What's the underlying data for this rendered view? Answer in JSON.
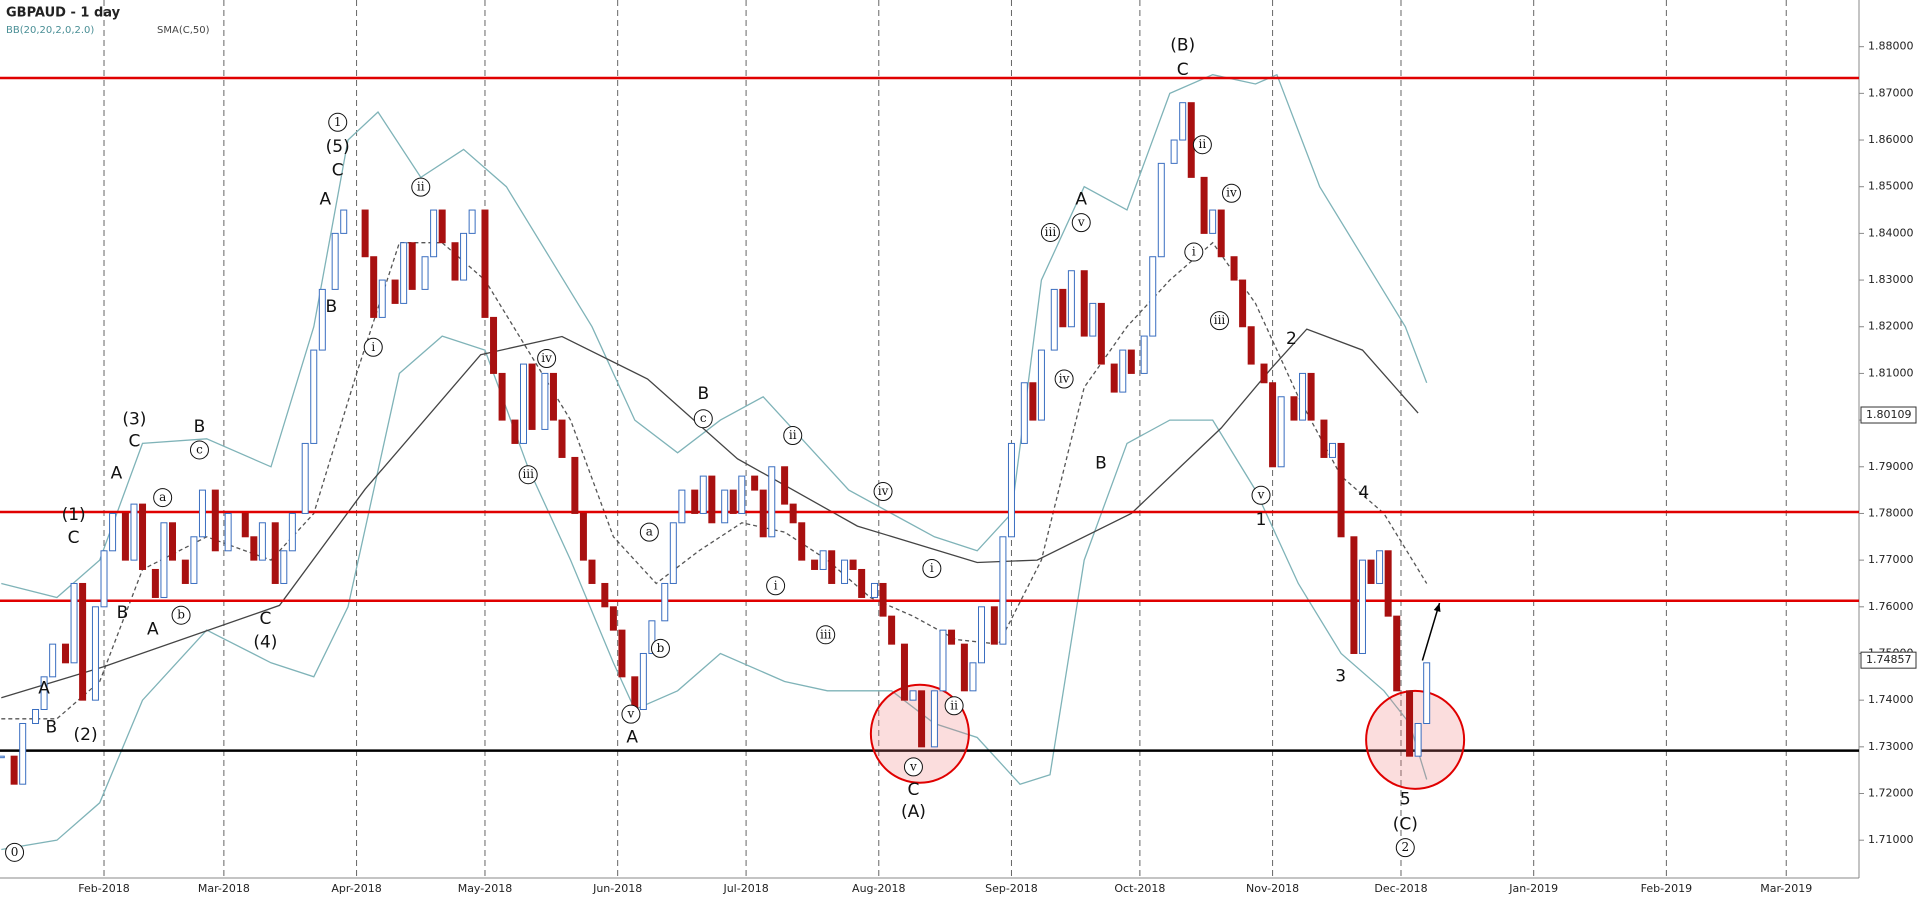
{
  "chart_data": {
    "type": "candlestick",
    "title": "GBPAUD - 1 day",
    "indicators": [
      "BB(20,20,2,0,2.0)",
      "SMA(C,50)"
    ],
    "xlim": [
      6.7,
      441
    ],
    "ylim": [
      1.7019,
      1.89
    ],
    "xticks": [
      {
        "value": 31,
        "label": "Feb-2018"
      },
      {
        "value": 59,
        "label": "Mar-2018"
      },
      {
        "value": 90,
        "label": "Apr-2018"
      },
      {
        "value": 120,
        "label": "May-2018"
      },
      {
        "value": 151,
        "label": "Jun-2018"
      },
      {
        "value": 181,
        "label": "Jul-2018"
      },
      {
        "value": 212,
        "label": "Aug-2018"
      },
      {
        "value": 243,
        "label": "Sep-2018"
      },
      {
        "value": 273,
        "label": "Oct-2018"
      },
      {
        "value": 304,
        "label": "Nov-2018"
      },
      {
        "value": 334,
        "label": "Dec-2018"
      },
      {
        "value": 365,
        "label": "Jan-2019"
      },
      {
        "value": 396,
        "label": "Feb-2019"
      },
      {
        "value": 424,
        "label": "Mar-2019"
      }
    ],
    "yticks": [
      {
        "value": 1.71,
        "label": "1.71000"
      },
      {
        "value": 1.72,
        "label": "1.72000"
      },
      {
        "value": 1.73,
        "label": "1.73000"
      },
      {
        "value": 1.74,
        "label": "1.74000"
      },
      {
        "value": 1.75,
        "label": "1.75000"
      },
      {
        "value": 1.76,
        "label": "1.76000"
      },
      {
        "value": 1.77,
        "label": "1.77000"
      },
      {
        "value": 1.78,
        "label": "1.78000"
      },
      {
        "value": 1.79,
        "label": "1.79000"
      },
      {
        "value": 1.8,
        "label": "1.80000"
      },
      {
        "value": 1.81,
        "label": "1.81000"
      },
      {
        "value": 1.82,
        "label": "1.82000"
      },
      {
        "value": 1.83,
        "label": "1.83000"
      },
      {
        "value": 1.84,
        "label": "1.84000"
      },
      {
        "value": 1.85,
        "label": "1.85000"
      },
      {
        "value": 1.86,
        "label": "1.86000"
      },
      {
        "value": 1.87,
        "label": "1.87000"
      },
      {
        "value": 1.88,
        "label": "1.88000"
      }
    ],
    "grid": true,
    "up_color": "#3a6ec0",
    "down_color": "#a81010",
    "x": [
      7,
      10,
      12,
      15,
      17,
      19,
      22,
      24,
      26,
      29,
      31,
      33,
      36,
      38,
      40,
      43,
      45,
      47,
      50,
      52,
      54,
      57,
      60,
      64,
      66,
      68,
      71,
      73,
      75,
      78,
      80,
      82,
      85,
      87,
      92,
      94,
      96,
      99,
      101,
      103,
      106,
      108,
      110,
      113,
      115,
      117,
      120,
      122,
      124,
      127,
      129,
      131,
      134,
      136,
      138,
      141,
      143,
      145,
      148,
      150,
      152,
      155,
      157,
      159,
      162,
      164,
      166,
      169,
      171,
      173,
      176,
      178,
      180,
      183,
      185,
      187,
      190,
      192,
      194,
      197,
      199,
      201,
      204,
      206,
      208,
      211,
      213,
      215,
      218,
      220,
      222,
      225,
      227,
      229,
      232,
      234,
      236,
      239,
      241,
      243,
      246,
      248,
      250,
      253,
      255,
      257,
      260,
      262,
      264,
      267,
      269,
      271,
      274,
      276,
      278,
      281,
      283,
      285,
      288,
      290,
      292,
      295,
      297,
      299,
      302,
      304,
      306,
      309,
      311,
      313,
      316,
      318,
      320,
      323,
      325,
      327,
      329,
      331,
      333,
      336,
      338,
      340
    ],
    "close": [
      1.728,
      1.722,
      1.735,
      1.738,
      1.745,
      1.752,
      1.748,
      1.765,
      1.74,
      1.76,
      1.772,
      1.78,
      1.77,
      1.782,
      1.768,
      1.762,
      1.778,
      1.77,
      1.765,
      1.775,
      1.785,
      1.772,
      1.78,
      1.775,
      1.77,
      1.778,
      1.765,
      1.772,
      1.78,
      1.795,
      1.815,
      1.828,
      1.84,
      1.845,
      1.835,
      1.822,
      1.83,
      1.825,
      1.838,
      1.828,
      1.835,
      1.845,
      1.838,
      1.83,
      1.84,
      1.845,
      1.822,
      1.81,
      1.8,
      1.795,
      1.812,
      1.798,
      1.81,
      1.8,
      1.792,
      1.78,
      1.77,
      1.765,
      1.76,
      1.755,
      1.745,
      1.738,
      1.75,
      1.757,
      1.765,
      1.778,
      1.785,
      1.78,
      1.788,
      1.778,
      1.785,
      1.78,
      1.788,
      1.785,
      1.775,
      1.79,
      1.782,
      1.778,
      1.77,
      1.768,
      1.772,
      1.765,
      1.77,
      1.768,
      1.762,
      1.765,
      1.758,
      1.752,
      1.74,
      1.742,
      1.73,
      1.742,
      1.755,
      1.752,
      1.742,
      1.748,
      1.76,
      1.752,
      1.775,
      1.795,
      1.808,
      1.8,
      1.815,
      1.828,
      1.82,
      1.832,
      1.818,
      1.825,
      1.812,
      1.806,
      1.815,
      1.81,
      1.818,
      1.835,
      1.855,
      1.86,
      1.868,
      1.852,
      1.84,
      1.845,
      1.835,
      1.83,
      1.82,
      1.812,
      1.808,
      1.79,
      1.805,
      1.8,
      1.81,
      1.8,
      1.792,
      1.795,
      1.775,
      1.75,
      1.77,
      1.765,
      1.772,
      1.758,
      1.742,
      1.728,
      1.735,
      1.748
    ],
    "overlays": [
      {
        "color": "#7fb3b8",
        "dashed": false,
        "x": [
          7,
          20,
          30,
          40,
          55,
          70,
          80,
          88,
          95,
          105,
          115,
          125,
          135,
          145,
          155,
          165,
          175,
          185,
          195,
          205,
          215,
          225,
          235,
          243,
          250,
          260,
          270,
          280,
          290,
          300,
          305,
          315,
          325,
          335,
          340
        ],
        "values": [
          1.765,
          1.762,
          1.77,
          1.795,
          1.796,
          1.79,
          1.82,
          1.86,
          1.866,
          1.852,
          1.858,
          1.85,
          1.835,
          1.82,
          1.8,
          1.793,
          1.8,
          1.805,
          1.795,
          1.785,
          1.78,
          1.775,
          1.772,
          1.78,
          1.83,
          1.85,
          1.845,
          1.87,
          1.874,
          1.872,
          1.874,
          1.85,
          1.835,
          1.82,
          1.808
        ]
      },
      {
        "color": "#7fb3b8",
        "dashed": false,
        "x": [
          7,
          20,
          30,
          40,
          55,
          70,
          80,
          88,
          100,
          110,
          120,
          130,
          140,
          150,
          155,
          165,
          175,
          190,
          200,
          215,
          225,
          235,
          245,
          252,
          260,
          270,
          280,
          290,
          300,
          310,
          320,
          330,
          336,
          340
        ],
        "values": [
          1.708,
          1.71,
          1.718,
          1.74,
          1.755,
          1.748,
          1.745,
          1.76,
          1.81,
          1.818,
          1.815,
          1.79,
          1.77,
          1.748,
          1.738,
          1.742,
          1.75,
          1.744,
          1.742,
          1.742,
          1.735,
          1.732,
          1.722,
          1.724,
          1.77,
          1.795,
          1.8,
          1.8,
          1.785,
          1.765,
          1.75,
          1.742,
          1.735,
          1.723
        ]
      },
      {
        "color": "#555555",
        "dashed": true,
        "x": [
          7,
          20,
          30,
          40,
          55,
          70,
          80,
          90,
          100,
          110,
          120,
          130,
          140,
          150,
          160,
          170,
          180,
          190,
          200,
          210,
          220,
          230,
          240,
          250,
          260,
          270,
          280,
          290,
          300,
          310,
          320,
          330,
          340
        ],
        "values": [
          1.736,
          1.736,
          1.744,
          1.768,
          1.775,
          1.77,
          1.78,
          1.81,
          1.838,
          1.838,
          1.83,
          1.815,
          1.8,
          1.775,
          1.765,
          1.772,
          1.778,
          1.776,
          1.77,
          1.762,
          1.758,
          1.753,
          1.752,
          1.77,
          1.807,
          1.82,
          1.83,
          1.838,
          1.825,
          1.805,
          1.788,
          1.78,
          1.765
        ]
      },
      {
        "color": "#444444",
        "dashed": false,
        "x": [
          7,
          31,
          72,
          92,
          119,
          138,
          158,
          179,
          207,
          235,
          249,
          271,
          292,
          304,
          312,
          325,
          338
        ],
        "values": [
          1.7405,
          1.7472,
          1.7603,
          1.7852,
          1.814,
          1.8179,
          1.8088,
          1.7917,
          1.7773,
          1.7695,
          1.77,
          1.78,
          1.7983,
          1.8114,
          1.8195,
          1.815,
          1.8015
        ]
      }
    ],
    "levels": [
      {
        "value": 1.8733,
        "color": "#e00000"
      },
      {
        "value": 1.7803,
        "color": "#e00000"
      },
      {
        "value": 1.7613,
        "color": "#e00000"
      },
      {
        "value": 1.7292,
        "color": "#000000"
      }
    ],
    "price_labels": [
      1.80109,
      1.74857
    ],
    "highlights": [
      {
        "x": 221.6,
        "y": 1.7328
      },
      {
        "x": 337.3,
        "y": 1.7315
      }
    ],
    "arrow": {
      "x": [
        339,
        343
      ],
      "y": [
        1.7485,
        1.7608
      ]
    },
    "annotations": [
      {
        "text": "0",
        "x": 10.1,
        "y": 1.7074,
        "circled": true
      },
      {
        "text": "B",
        "x": 18.7,
        "y": 1.7341,
        "circled": false
      },
      {
        "text": "A",
        "x": 17,
        "y": 1.7425,
        "circled": false
      },
      {
        "text": "(2)",
        "x": 26.7,
        "y": 1.7325,
        "circled": false
      },
      {
        "text": "C",
        "x": 23.9,
        "y": 1.7747,
        "circled": false
      },
      {
        "text": "(1)",
        "x": 23.9,
        "y": 1.7797,
        "circled": false
      },
      {
        "text": "B",
        "x": 35.3,
        "y": 1.7587,
        "circled": false
      },
      {
        "text": "A",
        "x": 33.9,
        "y": 1.7886,
        "circled": false
      },
      {
        "text": "C",
        "x": 38.1,
        "y": 1.7954,
        "circled": false
      },
      {
        "text": "(3)",
        "x": 38.1,
        "y": 1.8001,
        "circled": false
      },
      {
        "text": "a",
        "x": 44.7,
        "y": 1.7834,
        "circled": true
      },
      {
        "text": "b",
        "x": 49,
        "y": 1.7582,
        "circled": true
      },
      {
        "text": "A",
        "x": 42.4,
        "y": 1.7551,
        "circled": false
      },
      {
        "text": "c",
        "x": 53.3,
        "y": 1.7936,
        "circled": true
      },
      {
        "text": "B",
        "x": 53.3,
        "y": 1.7985,
        "circled": false
      },
      {
        "text": "C",
        "x": 68.7,
        "y": 1.7574,
        "circled": false
      },
      {
        "text": "(4)",
        "x": 68.7,
        "y": 1.7524,
        "circled": false
      },
      {
        "text": "A",
        "x": 82.7,
        "y": 1.8473,
        "circled": false
      },
      {
        "text": "C",
        "x": 85.6,
        "y": 1.8535,
        "circled": false
      },
      {
        "text": "(5)",
        "x": 85.6,
        "y": 1.8585,
        "circled": false
      },
      {
        "text": "1",
        "x": 85.6,
        "y": 1.8638,
        "circled": true
      },
      {
        "text": "B",
        "x": 84.1,
        "y": 1.8242,
        "circled": false
      },
      {
        "text": "i",
        "x": 93.9,
        "y": 1.8156,
        "circled": true
      },
      {
        "text": "ii",
        "x": 105,
        "y": 1.8499,
        "circled": true
      },
      {
        "text": "iv",
        "x": 134.4,
        "y": 1.8132,
        "circled": true
      },
      {
        "text": "iii",
        "x": 130.1,
        "y": 1.7883,
        "circled": true
      },
      {
        "text": "v",
        "x": 154.1,
        "y": 1.737,
        "circled": true
      },
      {
        "text": "A",
        "x": 154.4,
        "y": 1.732,
        "circled": false
      },
      {
        "text": "a",
        "x": 158.4,
        "y": 1.776,
        "circled": true
      },
      {
        "text": "b",
        "x": 161,
        "y": 1.7511,
        "circled": true
      },
      {
        "text": "c",
        "x": 171,
        "y": 1.8003,
        "circled": true
      },
      {
        "text": "B",
        "x": 171,
        "y": 1.8056,
        "circled": false
      },
      {
        "text": "ii",
        "x": 191.9,
        "y": 1.7967,
        "circled": true
      },
      {
        "text": "i",
        "x": 187.9,
        "y": 1.7645,
        "circled": true
      },
      {
        "text": "iii",
        "x": 199.6,
        "y": 1.754,
        "circled": true
      },
      {
        "text": "iv",
        "x": 213,
        "y": 1.7847,
        "circled": true
      },
      {
        "text": "i",
        "x": 224.4,
        "y": 1.7682,
        "circled": true
      },
      {
        "text": "ii",
        "x": 229.6,
        "y": 1.7388,
        "circled": true
      },
      {
        "text": "v",
        "x": 220.1,
        "y": 1.7257,
        "circled": true
      },
      {
        "text": "C",
        "x": 220.1,
        "y": 1.7208,
        "circled": false
      },
      {
        "text": "(A)",
        "x": 220.1,
        "y": 1.716,
        "circled": false
      },
      {
        "text": "iii",
        "x": 252.1,
        "y": 1.8402,
        "circled": true
      },
      {
        "text": "v",
        "x": 259.3,
        "y": 1.8423,
        "circled": true
      },
      {
        "text": "A",
        "x": 259.3,
        "y": 1.8473,
        "circled": false
      },
      {
        "text": "iv",
        "x": 255.3,
        "y": 1.8088,
        "circled": true
      },
      {
        "text": "B",
        "x": 263.9,
        "y": 1.7907,
        "circled": false
      },
      {
        "text": "(B)",
        "x": 283,
        "y": 1.8803,
        "circled": false
      },
      {
        "text": "C",
        "x": 283,
        "y": 1.875,
        "circled": false
      },
      {
        "text": "ii",
        "x": 287.6,
        "y": 1.859,
        "circled": true
      },
      {
        "text": "i",
        "x": 285.6,
        "y": 1.836,
        "circled": true
      },
      {
        "text": "iv",
        "x": 294.4,
        "y": 1.8486,
        "circled": true
      },
      {
        "text": "iii",
        "x": 291.6,
        "y": 1.8213,
        "circled": true
      },
      {
        "text": "v",
        "x": 301.3,
        "y": 1.7839,
        "circled": true
      },
      {
        "text": "1",
        "x": 301.3,
        "y": 1.7786,
        "circled": false
      },
      {
        "text": "2",
        "x": 308.4,
        "y": 1.8174,
        "circled": false
      },
      {
        "text": "4",
        "x": 325.3,
        "y": 1.7844,
        "circled": false
      },
      {
        "text": "3",
        "x": 319.9,
        "y": 1.7451,
        "circled": false
      },
      {
        "text": "5",
        "x": 335,
        "y": 1.7187,
        "circled": false
      },
      {
        "text": "(C)",
        "x": 335,
        "y": 1.7134,
        "circled": false
      },
      {
        "text": "2",
        "x": 335,
        "y": 1.7084,
        "circled": true
      }
    ]
  }
}
